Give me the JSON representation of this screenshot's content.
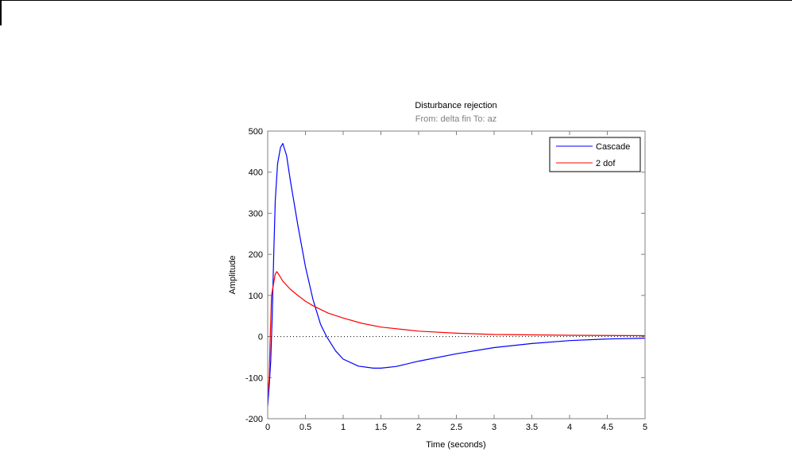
{
  "chart_data": {
    "type": "line",
    "title": "Disturbance rejection",
    "subtitle": "From: delta fin  To: az",
    "xlabel": "Time (seconds)",
    "ylabel": "Amplitude",
    "xlim": [
      0,
      5
    ],
    "ylim": [
      -200,
      500
    ],
    "xticks": [
      0,
      0.5,
      1,
      1.5,
      2,
      2.5,
      3,
      3.5,
      4,
      4.5,
      5
    ],
    "yticks": [
      -200,
      -100,
      0,
      100,
      200,
      300,
      400,
      500
    ],
    "grid": false,
    "zero_line": "dotted",
    "legend_position": "top-right",
    "series": [
      {
        "name": "Cascade",
        "color": "#0000ff",
        "x": [
          0,
          0.02,
          0.04,
          0.06,
          0.08,
          0.1,
          0.13,
          0.17,
          0.2,
          0.25,
          0.3,
          0.4,
          0.5,
          0.6,
          0.7,
          0.78,
          0.9,
          1.0,
          1.2,
          1.4,
          1.5,
          1.7,
          2.0,
          2.5,
          3.0,
          3.5,
          4.0,
          4.5,
          5.0
        ],
        "y": [
          -170,
          -120,
          -60,
          50,
          200,
          330,
          420,
          460,
          470,
          440,
          380,
          270,
          170,
          90,
          30,
          0,
          -35,
          -55,
          -72,
          -77,
          -77,
          -73,
          -60,
          -42,
          -27,
          -17,
          -10,
          -6,
          -4
        ]
      },
      {
        "name": "2 dof",
        "color": "#ff0000",
        "x": [
          0,
          0.02,
          0.03,
          0.05,
          0.07,
          0.1,
          0.12,
          0.15,
          0.2,
          0.3,
          0.4,
          0.5,
          0.6,
          0.8,
          1.0,
          1.25,
          1.5,
          2.0,
          2.5,
          3.0,
          4.0,
          5.0
        ],
        "y": [
          -140,
          -100,
          -20,
          100,
          120,
          152,
          158,
          150,
          135,
          115,
          100,
          86,
          75,
          57,
          45,
          32,
          23,
          13,
          8,
          5,
          3,
          2
        ]
      }
    ]
  }
}
